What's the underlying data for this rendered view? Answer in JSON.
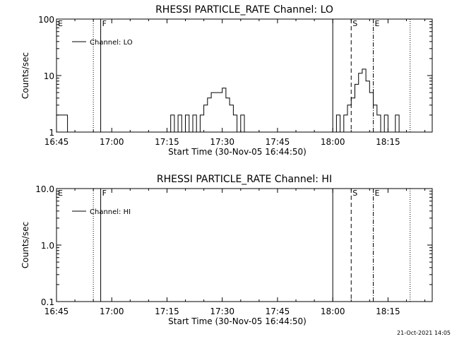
{
  "chart_data": [
    {
      "type": "line",
      "title": "RHESSI PARTICLE_RATE Channel: LO",
      "xlabel": "Start Time (30-Nov-05 16:44:50)",
      "ylabel": "Counts/sec",
      "y_scale": "log",
      "ylim": [
        1,
        100
      ],
      "xlim": [
        "16:45",
        "18:27"
      ],
      "x_ticks": [
        "16:45",
        "17:00",
        "17:15",
        "17:30",
        "17:45",
        "18:00",
        "18:15"
      ],
      "y_ticks": [
        "1",
        "10",
        "100"
      ],
      "legend_position": "top-left",
      "series": [
        {
          "name": "Channel: LO",
          "x": [
            "16:45",
            "16:46",
            "16:47",
            "16:48",
            "17:15",
            "17:16",
            "17:17",
            "17:18",
            "17:19",
            "17:20",
            "17:21",
            "17:22",
            "17:24",
            "17:25",
            "17:26",
            "17:27",
            "17:28",
            "17:29",
            "17:30",
            "17:31",
            "17:32",
            "17:33",
            "17:34",
            "17:35",
            "17:36",
            "17:37",
            "18:00",
            "18:01",
            "18:02",
            "18:03",
            "18:04",
            "18:05",
            "18:06",
            "18:07",
            "18:08",
            "18:09",
            "18:10",
            "18:11",
            "18:12",
            "18:13",
            "18:14",
            "18:15",
            "18:16",
            "18:17",
            "18:18",
            "18:19",
            "18:20",
            "18:21"
          ],
          "values": [
            2,
            2,
            2,
            1,
            1,
            2,
            1,
            2,
            1,
            2,
            1,
            2,
            2,
            3,
            4,
            5,
            5,
            5,
            6,
            4,
            3,
            2,
            1,
            2,
            1,
            1,
            1,
            2,
            1,
            2,
            3,
            4,
            7,
            11,
            13,
            8,
            5,
            3,
            2,
            1,
            2,
            1,
            1,
            2,
            1,
            1,
            1,
            1
          ]
        }
      ],
      "markers": [
        {
          "label": "E",
          "time": "16:45",
          "style": "solid"
        },
        {
          "label": "",
          "time": "16:55",
          "style": "dotted"
        },
        {
          "label": "F",
          "time": "16:57",
          "style": "solid"
        },
        {
          "label": "",
          "time": "18:00",
          "style": "solid"
        },
        {
          "label": "S",
          "time": "18:05",
          "style": "dashed"
        },
        {
          "label": "E",
          "time": "18:11",
          "style": "dashdot"
        },
        {
          "label": "",
          "time": "18:21",
          "style": "dotted"
        }
      ]
    },
    {
      "type": "line",
      "title": "RHESSI PARTICLE_RATE Channel: HI",
      "xlabel": "Start Time (30-Nov-05 16:44:50)",
      "ylabel": "Counts/sec",
      "y_scale": "log",
      "ylim": [
        0.1,
        10
      ],
      "xlim": [
        "16:45",
        "18:27"
      ],
      "x_ticks": [
        "16:45",
        "17:00",
        "17:15",
        "17:30",
        "17:45",
        "18:00",
        "18:15"
      ],
      "y_ticks": [
        "0.1",
        "1.0",
        "10.0"
      ],
      "legend_position": "top-left",
      "series": [
        {
          "name": "Channel: HI",
          "x": [],
          "values": []
        }
      ],
      "markers": [
        {
          "label": "E",
          "time": "16:45",
          "style": "solid"
        },
        {
          "label": "",
          "time": "16:55",
          "style": "dotted"
        },
        {
          "label": "F",
          "time": "16:57",
          "style": "solid"
        },
        {
          "label": "",
          "time": "18:00",
          "style": "solid"
        },
        {
          "label": "S",
          "time": "18:05",
          "style": "dashed"
        },
        {
          "label": "E",
          "time": "18:11",
          "style": "dashdot"
        },
        {
          "label": "",
          "time": "18:21",
          "style": "dotted"
        }
      ]
    }
  ],
  "footer": {
    "timestamp": "21-Oct-2021 14:05"
  }
}
